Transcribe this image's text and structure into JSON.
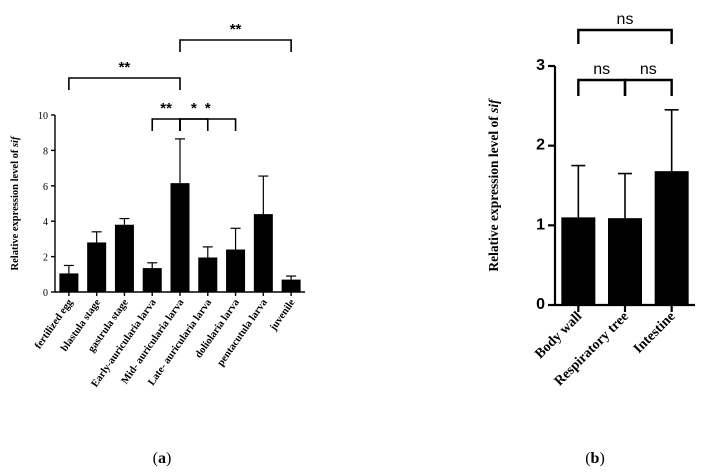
{
  "chart_data": [
    {
      "panel": "(a)",
      "type": "bar",
      "ylabel_prefix": "Relative expression level of ",
      "ylabel_gene": "sif",
      "ylim": [
        0,
        10
      ],
      "yticks": [
        0,
        2,
        4,
        6,
        8,
        10
      ],
      "categories": [
        "fertilized egg",
        "blastula stage",
        "gastrula stage",
        "Early-auricularia larva",
        "Mid- auricularia larva",
        "Late- auricularia larva",
        "doliolaria larva",
        "pentacutula larva",
        "juvenile"
      ],
      "values": [
        1.05,
        2.8,
        3.8,
        1.35,
        6.15,
        1.95,
        2.4,
        4.4,
        0.7
      ],
      "errors": [
        0.45,
        0.6,
        0.35,
        0.3,
        2.5,
        0.6,
        1.2,
        2.15,
        0.2
      ],
      "significance": [
        {
          "from": 3,
          "to": 4,
          "label": "**"
        },
        {
          "from": 4,
          "to": 5,
          "label": "*"
        },
        {
          "from": 4,
          "to": 6,
          "label": "*"
        },
        {
          "from": 0,
          "to": 4,
          "label": "**"
        },
        {
          "from": 4,
          "to": 8,
          "label": "**"
        }
      ]
    },
    {
      "panel": "(b)",
      "type": "bar",
      "ylabel_prefix": "Relative expression level of ",
      "ylabel_gene": "sif",
      "ylim": [
        0,
        3
      ],
      "yticks": [
        0,
        1,
        2,
        3
      ],
      "categories": [
        "Body wall",
        "Respiratory tree",
        "Intestine"
      ],
      "values": [
        1.1,
        1.09,
        1.68
      ],
      "errors": [
        0.65,
        0.56,
        0.77
      ],
      "significance": [
        {
          "from": 0,
          "to": 1,
          "label": "ns"
        },
        {
          "from": 1,
          "to": 2,
          "label": "ns"
        },
        {
          "from": 0,
          "to": 2,
          "label": "ns"
        }
      ]
    }
  ]
}
